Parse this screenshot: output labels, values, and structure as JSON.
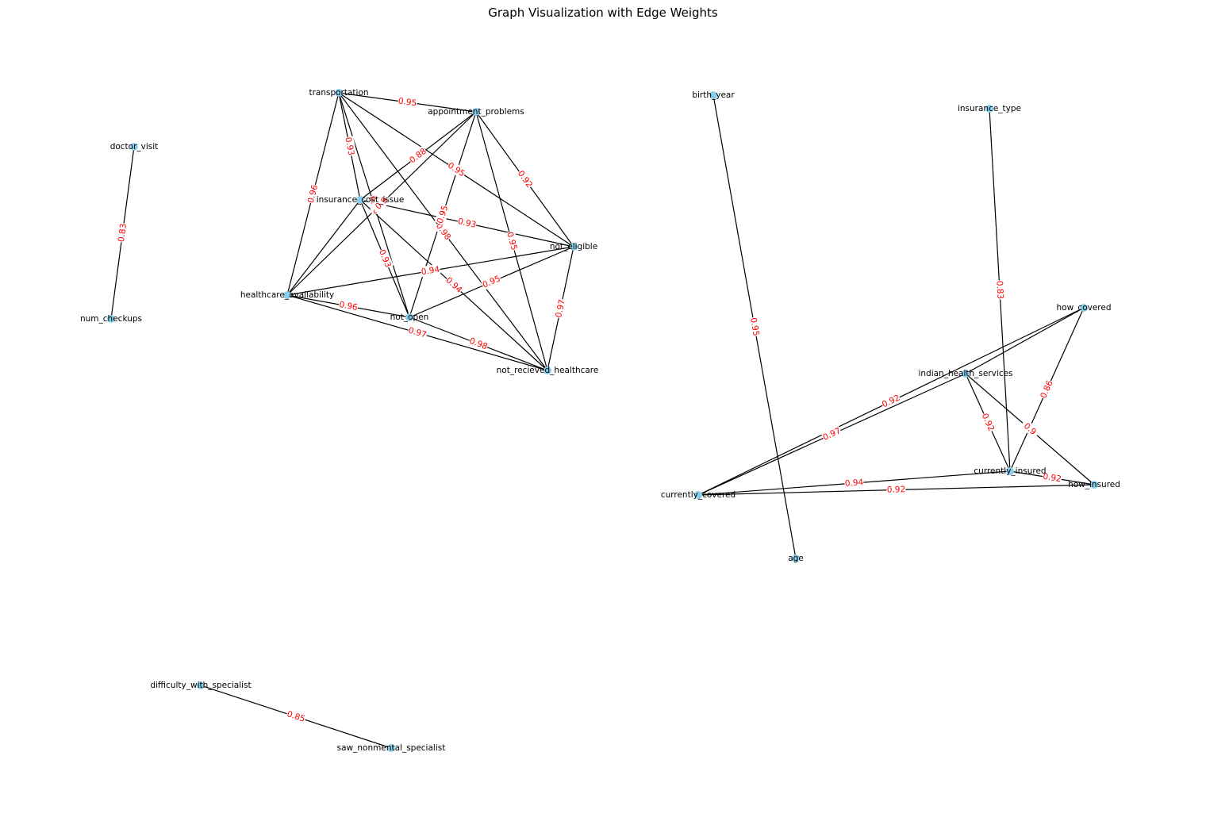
{
  "title": "Graph Visualization with Edge Weights",
  "colors": {
    "node": "#87ceeb",
    "edge": "#000000",
    "weight": "#ff0000"
  },
  "nodes": [
    {
      "id": "doctor_visit"
    },
    {
      "id": "num_checkups"
    },
    {
      "id": "transportation"
    },
    {
      "id": "appointment_problems"
    },
    {
      "id": "insurance_cost_issue"
    },
    {
      "id": "not_eligible"
    },
    {
      "id": "healthcare_availability"
    },
    {
      "id": "not_open"
    },
    {
      "id": "not_recieved_healthcare"
    },
    {
      "id": "birth_year"
    },
    {
      "id": "age"
    },
    {
      "id": "insurance_type"
    },
    {
      "id": "how_covered"
    },
    {
      "id": "indian_health_services"
    },
    {
      "id": "currently_insured"
    },
    {
      "id": "how_insured"
    },
    {
      "id": "currently_covered"
    },
    {
      "id": "difficulty_with_specialist"
    },
    {
      "id": "saw_nonmental_specialist"
    }
  ],
  "edges": [
    {
      "source": "doctor_visit",
      "target": "num_checkups",
      "weight": "0.83"
    },
    {
      "source": "transportation",
      "target": "appointment_problems",
      "weight": "0.95"
    },
    {
      "source": "transportation",
      "target": "insurance_cost_issue",
      "weight": "0.93"
    },
    {
      "source": "transportation",
      "target": "healthcare_availability",
      "weight": "0.96"
    },
    {
      "source": "transportation",
      "target": "not_eligible",
      "weight": "0.95"
    },
    {
      "source": "transportation",
      "target": "not_open",
      "weight": "0.98"
    },
    {
      "source": "transportation",
      "target": "not_recieved_healthcare",
      "weight": "0.98"
    },
    {
      "source": "appointment_problems",
      "target": "insurance_cost_issue",
      "weight": "0.88"
    },
    {
      "source": "appointment_problems",
      "target": "not_eligible",
      "weight": "0.92"
    },
    {
      "source": "appointment_problems",
      "target": "healthcare_availability",
      "weight": "0.9"
    },
    {
      "source": "appointment_problems",
      "target": "not_open",
      "weight": "0.95"
    },
    {
      "source": "appointment_problems",
      "target": "not_recieved_healthcare",
      "weight": "0.95"
    },
    {
      "source": "insurance_cost_issue",
      "target": "not_eligible",
      "weight": "0.93"
    },
    {
      "source": "insurance_cost_issue",
      "target": "healthcare_availability",
      "weight": ""
    },
    {
      "source": "insurance_cost_issue",
      "target": "not_open",
      "weight": "0.93"
    },
    {
      "source": "insurance_cost_issue",
      "target": "not_recieved_healthcare",
      "weight": "0.94"
    },
    {
      "source": "not_eligible",
      "target": "healthcare_availability",
      "weight": "0.94"
    },
    {
      "source": "not_eligible",
      "target": "not_open",
      "weight": "0.95"
    },
    {
      "source": "not_eligible",
      "target": "not_recieved_healthcare",
      "weight": "0.97"
    },
    {
      "source": "healthcare_availability",
      "target": "not_open",
      "weight": "0.96"
    },
    {
      "source": "healthcare_availability",
      "target": "not_recieved_healthcare",
      "weight": "0.97"
    },
    {
      "source": "not_open",
      "target": "not_recieved_healthcare",
      "weight": "0.98"
    },
    {
      "source": "birth_year",
      "target": "age",
      "weight": "0.95"
    },
    {
      "source": "insurance_type",
      "target": "currently_insured",
      "weight": "0.83"
    },
    {
      "source": "how_covered",
      "target": "indian_health_services",
      "weight": ""
    },
    {
      "source": "how_covered",
      "target": "currently_covered",
      "weight": "0.92"
    },
    {
      "source": "how_covered",
      "target": "currently_insured",
      "weight": "0.86"
    },
    {
      "source": "indian_health_services",
      "target": "currently_covered",
      "weight": "0.97"
    },
    {
      "source": "indian_health_services",
      "target": "currently_insured",
      "weight": "0.92"
    },
    {
      "source": "indian_health_services",
      "target": "how_insured",
      "weight": "0.9"
    },
    {
      "source": "currently_covered",
      "target": "currently_insured",
      "weight": "0.94"
    },
    {
      "source": "currently_covered",
      "target": "how_insured",
      "weight": "0.92"
    },
    {
      "source": "currently_insured",
      "target": "how_insured",
      "weight": "0.92"
    },
    {
      "source": "difficulty_with_specialist",
      "target": "saw_nonmental_specialist",
      "weight": "0.85"
    }
  ]
}
